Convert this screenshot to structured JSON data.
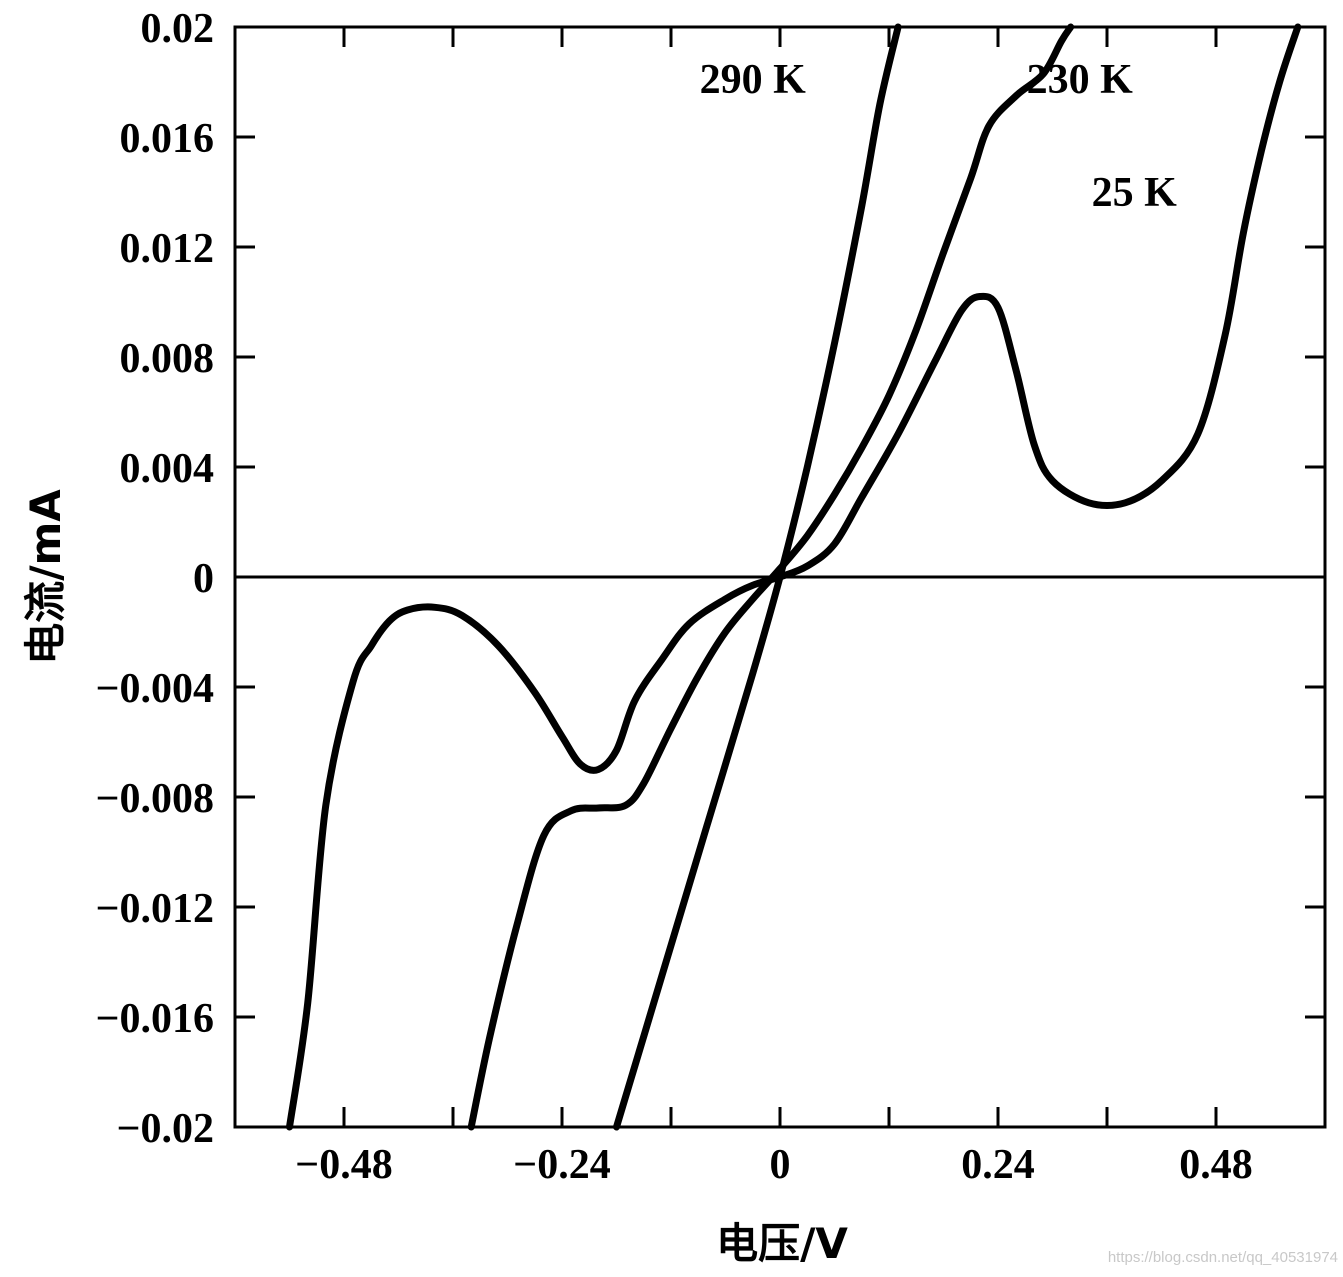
{
  "chart_data": {
    "type": "line",
    "xlabel": "电压/V",
    "ylabel": "电流/mA",
    "xlim": [
      -0.6,
      0.6
    ],
    "ylim": [
      -0.02,
      0.02
    ],
    "x_ticks": [
      -0.48,
      -0.36,
      -0.24,
      -0.12,
      0,
      0.12,
      0.24,
      0.36,
      0.48
    ],
    "x_tick_labels": [
      "−0.48",
      "",
      "−0.24",
      "",
      "0",
      "",
      "0.24",
      "",
      "0.48"
    ],
    "y_ticks": [
      0.02,
      0.016,
      0.012,
      0.008,
      0.004,
      0,
      -0.004,
      -0.008,
      -0.012,
      -0.016,
      -0.02
    ],
    "y_tick_labels": [
      "0.02",
      "0.016",
      "0.012",
      "0.008",
      "0.004",
      "0",
      "−0.004",
      "−0.008",
      "−0.012",
      "−0.016",
      "−0.02"
    ],
    "zero_line": true,
    "grid": false,
    "series": [
      {
        "name": "290 K",
        "x": [
          -0.18,
          -0.13,
          -0.08,
          -0.03,
          0,
          0.03,
          0.06,
          0.09,
          0.11,
          0.13
        ],
        "y": [
          -0.02,
          -0.0145,
          -0.009,
          -0.0035,
          0,
          0.004,
          0.0085,
          0.0135,
          0.0172,
          0.02
        ]
      },
      {
        "name": "230 K",
        "x": [
          -0.34,
          -0.32,
          -0.29,
          -0.26,
          -0.23,
          -0.2,
          -0.17,
          -0.15,
          -0.12,
          -0.09,
          -0.06,
          -0.03,
          0,
          0.03,
          0.06,
          0.09,
          0.12,
          0.15,
          0.18,
          0.21,
          0.23,
          0.26,
          0.29,
          0.31,
          0.32
        ],
        "y": [
          -0.02,
          -0.0168,
          -0.0127,
          -0.0094,
          -0.0085,
          -0.0084,
          -0.0083,
          -0.0075,
          -0.0055,
          -0.0036,
          -0.002,
          -0.0008,
          0.0003,
          0.0015,
          0.003,
          0.0047,
          0.0066,
          0.009,
          0.0118,
          0.0145,
          0.0164,
          0.0175,
          0.0183,
          0.0195,
          0.02
        ]
      },
      {
        "name": "25 K",
        "x": [
          -0.54,
          -0.52,
          -0.5,
          -0.47,
          -0.45,
          -0.43,
          -0.41,
          -0.38,
          -0.35,
          -0.31,
          -0.27,
          -0.24,
          -0.22,
          -0.2,
          -0.18,
          -0.16,
          -0.13,
          -0.1,
          -0.06,
          -0.03,
          0,
          0.03,
          0.06,
          0.09,
          0.13,
          0.17,
          0.2,
          0.22,
          0.24,
          0.26,
          0.28,
          0.3,
          0.34,
          0.38,
          0.42,
          0.46,
          0.49,
          0.51,
          0.53,
          0.55,
          0.57
        ],
        "y": [
          -0.02,
          -0.0155,
          -0.0083,
          -0.0038,
          -0.0025,
          -0.0016,
          -0.0012,
          -0.0011,
          -0.0014,
          -0.0025,
          -0.0042,
          -0.0058,
          -0.0068,
          -0.007,
          -0.0063,
          -0.0045,
          -0.003,
          -0.0017,
          -0.0008,
          -0.0003,
          0,
          0.0004,
          0.0012,
          0.0029,
          0.0052,
          0.0078,
          0.0097,
          0.0102,
          0.0098,
          0.0075,
          0.0048,
          0.0035,
          0.0027,
          0.0027,
          0.0035,
          0.0052,
          0.0088,
          0.0125,
          0.0155,
          0.018,
          0.02
        ]
      }
    ],
    "annotations": [
      {
        "text": "290 K",
        "x": -0.03,
        "y": 0.0176
      },
      {
        "text": "230 K",
        "x": 0.33,
        "y": 0.0176
      },
      {
        "text": "25 K",
        "x": 0.39,
        "y": 0.0135
      }
    ]
  },
  "watermark": "https://blog.csdn.net/qq_40531974"
}
